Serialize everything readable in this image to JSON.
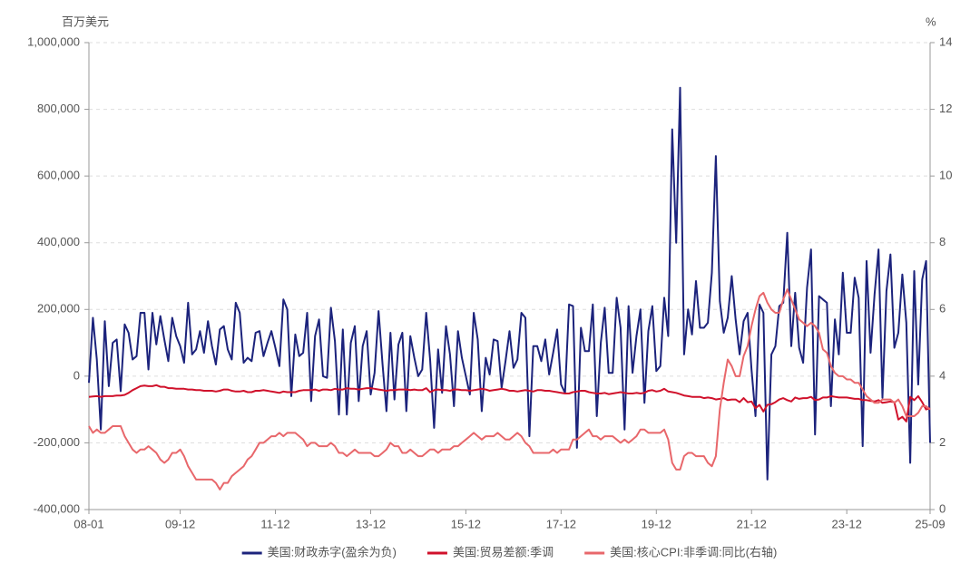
{
  "chart_data": {
    "type": "line",
    "y_axis_label": "百万美元",
    "y2_axis_label": "%",
    "categories": [
      "08-01",
      null,
      null,
      null,
      null,
      null,
      null,
      null,
      null,
      null,
      null,
      null,
      null,
      null,
      null,
      null,
      null,
      null,
      null,
      null,
      null,
      null,
      null,
      "09-12",
      null,
      null,
      null,
      null,
      null,
      null,
      null,
      null,
      null,
      null,
      null,
      null,
      null,
      null,
      null,
      null,
      null,
      null,
      null,
      null,
      null,
      null,
      null,
      "11-12",
      null,
      null,
      null,
      null,
      null,
      null,
      null,
      null,
      null,
      null,
      null,
      null,
      null,
      null,
      null,
      null,
      null,
      null,
      null,
      null,
      null,
      null,
      null,
      "13-12",
      null,
      null,
      null,
      null,
      null,
      null,
      null,
      null,
      null,
      null,
      null,
      null,
      null,
      null,
      null,
      null,
      null,
      null,
      null,
      null,
      null,
      null,
      null,
      "15-12",
      null,
      null,
      null,
      null,
      null,
      null,
      null,
      null,
      null,
      null,
      null,
      null,
      null,
      null,
      null,
      null,
      null,
      null,
      null,
      null,
      null,
      null,
      null,
      "17-12",
      null,
      null,
      null,
      null,
      null,
      null,
      null,
      null,
      null,
      null,
      null,
      null,
      null,
      null,
      null,
      null,
      null,
      null,
      null,
      null,
      null,
      null,
      null,
      "19-12",
      null,
      null,
      null,
      null,
      null,
      null,
      null,
      null,
      null,
      null,
      null,
      null,
      null,
      null,
      null,
      null,
      null,
      null,
      null,
      null,
      null,
      null,
      null,
      "21-12",
      null,
      null,
      null,
      null,
      null,
      null,
      null,
      null,
      null,
      null,
      null,
      null,
      null,
      null,
      null,
      null,
      null,
      null,
      null,
      null,
      null,
      null,
      null,
      "23-12",
      null,
      null,
      null,
      null,
      null,
      null,
      null,
      null,
      null,
      null,
      null,
      null,
      null,
      null,
      null,
      null,
      null,
      null,
      null,
      null,
      "25-09"
    ],
    "ylim": [
      -400000,
      1000000
    ],
    "yticks": [
      {
        "value": -400000,
        "label": "-400,000"
      },
      {
        "value": -200000,
        "label": "-200,000"
      },
      0,
      {
        "value": 200000,
        "label": "200,000"
      },
      {
        "value": 400000,
        "label": "400,000"
      },
      {
        "value": 600000,
        "label": "600,000"
      },
      {
        "value": 800000,
        "label": "800,000"
      },
      {
        "value": 1000000,
        "label": "1,000,000"
      }
    ],
    "y2lim": [
      0,
      14
    ],
    "y2ticks": [
      0,
      2,
      4,
      6,
      8,
      10,
      12,
      14
    ],
    "grid": true,
    "legend": "bottom",
    "series": [
      {
        "name": "美国:财政赤字(盈余为负)",
        "color": "#1c237c",
        "axis": "y",
        "values": [
          -20000,
          175000,
          50000,
          -160000,
          165000,
          -30000,
          100000,
          110000,
          -45000,
          155000,
          130000,
          50000,
          60000,
          190000,
          190000,
          20000,
          190000,
          95000,
          180000,
          110000,
          45000,
          175000,
          120000,
          90000,
          40000,
          220000,
          65000,
          80000,
          135000,
          70000,
          165000,
          90000,
          35000,
          140000,
          150000,
          80000,
          50000,
          220000,
          190000,
          40000,
          55000,
          45000,
          130000,
          135000,
          60000,
          100000,
          135000,
          85000,
          30000,
          230000,
          200000,
          -60000,
          125000,
          60000,
          70000,
          190000,
          -75000,
          120000,
          170000,
          0,
          -5000,
          205000,
          105000,
          -115000,
          140000,
          -115000,
          100000,
          150000,
          -75000,
          90000,
          135000,
          -55000,
          10000,
          195000,
          35000,
          -105000,
          130000,
          -70000,
          95000,
          130000,
          -105000,
          120000,
          55000,
          0,
          20000,
          190000,
          50000,
          -155000,
          80000,
          -50000,
          150000,
          65000,
          -90000,
          135000,
          55000,
          0,
          -55000,
          190000,
          110000,
          -105000,
          55000,
          5000,
          110000,
          105000,
          -35000,
          45000,
          135000,
          25000,
          50000,
          190000,
          175000,
          -180000,
          90000,
          90000,
          45000,
          110000,
          5000,
          70000,
          140000,
          -25000,
          -50000,
          215000,
          210000,
          -215000,
          145000,
          75000,
          75000,
          215000,
          -120000,
          100000,
          205000,
          10000,
          10000,
          235000,
          145000,
          -160000,
          210000,
          10000,
          120000,
          200000,
          -80000,
          135000,
          210000,
          15000,
          30000,
          235000,
          120000,
          740000,
          400000,
          865000,
          65000,
          200000,
          125000,
          285000,
          145000,
          145000,
          160000,
          310000,
          660000,
          225000,
          130000,
          175000,
          300000,
          170000,
          65000,
          165000,
          190000,
          20000,
          -120000,
          215000,
          190000,
          -310000,
          65000,
          90000,
          210000,
          220000,
          430000,
          90000,
          250000,
          85000,
          40000,
          265000,
          380000,
          -175000,
          240000,
          230000,
          220000,
          -90000,
          170000,
          65000,
          310000,
          130000,
          130000,
          295000,
          235000,
          -210000,
          345000,
          70000,
          245000,
          380000,
          -65000,
          255000,
          365000,
          85000,
          130000,
          305000,
          160000,
          -260000,
          315000,
          -25000,
          290000,
          345000,
          -200000
        ]
      },
      {
        "name": "美国:贸易差额:季调",
        "color": "#d0112b",
        "axis": "y",
        "values": [
          -62000,
          -61000,
          -60000,
          -62000,
          -60000,
          -60000,
          -60000,
          -58000,
          -58000,
          -56000,
          -50000,
          -42000,
          -36000,
          -30000,
          -28000,
          -30000,
          -30000,
          -27000,
          -32000,
          -32000,
          -36000,
          -36000,
          -38000,
          -38000,
          -38000,
          -40000,
          -40000,
          -42000,
          -42000,
          -44000,
          -44000,
          -44000,
          -46000,
          -44000,
          -40000,
          -40000,
          -44000,
          -46000,
          -46000,
          -44000,
          -48000,
          -48000,
          -44000,
          -44000,
          -42000,
          -44000,
          -46000,
          -48000,
          -50000,
          -46000,
          -48000,
          -48000,
          -48000,
          -44000,
          -42000,
          -42000,
          -42000,
          -40000,
          -44000,
          -40000,
          -40000,
          -42000,
          -38000,
          -40000,
          -40000,
          -36000,
          -38000,
          -38000,
          -40000,
          -38000,
          -36000,
          -36000,
          -38000,
          -40000,
          -42000,
          -44000,
          -42000,
          -42000,
          -40000,
          -40000,
          -40000,
          -42000,
          -40000,
          -42000,
          -42000,
          -36000,
          -48000,
          -42000,
          -40000,
          -42000,
          -42000,
          -44000,
          -40000,
          -40000,
          -42000,
          -42000,
          -44000,
          -42000,
          -40000,
          -38000,
          -40000,
          -44000,
          -42000,
          -40000,
          -38000,
          -40000,
          -44000,
          -44000,
          -46000,
          -44000,
          -42000,
          -44000,
          -46000,
          -42000,
          -42000,
          -44000,
          -44000,
          -46000,
          -48000,
          -50000,
          -52000,
          -52000,
          -48000,
          -46000,
          -44000,
          -44000,
          -48000,
          -50000,
          -52000,
          -52000,
          -50000,
          -54000,
          -52000,
          -50000,
          -48000,
          -50000,
          -52000,
          -52000,
          -50000,
          -52000,
          -50000,
          -44000,
          -42000,
          -46000,
          -44000,
          -38000,
          -46000,
          -48000,
          -50000,
          -54000,
          -58000,
          -60000,
          -62000,
          -62000,
          -62000,
          -66000,
          -64000,
          -66000,
          -70000,
          -68000,
          -66000,
          -72000,
          -70000,
          -70000,
          -78000,
          -66000,
          -78000,
          -76000,
          -96000,
          -86000,
          -106000,
          -86000,
          -84000,
          -78000,
          -70000,
          -66000,
          -72000,
          -76000,
          -64000,
          -68000,
          -66000,
          -66000,
          -62000,
          -72000,
          -70000,
          -64000,
          -64000,
          -60000,
          -62000,
          -64000,
          -64000,
          -64000,
          -66000,
          -68000,
          -68000,
          -72000,
          -72000,
          -74000,
          -76000,
          -72000,
          -80000,
          -78000,
          -76000,
          -78000,
          -130000,
          -122000,
          -136000,
          -62000,
          -72000,
          -60000,
          -78000,
          -100000,
          -96000
        ]
      },
      {
        "name": "美国:核心CPI:非季调:同比(右轴)",
        "color": "#e8676b",
        "axis": "y2",
        "values": [
          2.5,
          2.3,
          2.4,
          2.3,
          2.3,
          2.4,
          2.5,
          2.5,
          2.5,
          2.2,
          2.0,
          1.8,
          1.7,
          1.8,
          1.8,
          1.9,
          1.8,
          1.7,
          1.5,
          1.4,
          1.5,
          1.7,
          1.7,
          1.8,
          1.6,
          1.3,
          1.1,
          0.9,
          0.9,
          0.9,
          0.9,
          0.9,
          0.8,
          0.6,
          0.8,
          0.8,
          1.0,
          1.1,
          1.2,
          1.3,
          1.5,
          1.6,
          1.8,
          2.0,
          2.0,
          2.1,
          2.2,
          2.2,
          2.3,
          2.2,
          2.3,
          2.3,
          2.3,
          2.2,
          2.1,
          1.9,
          2.0,
          2.0,
          1.9,
          1.9,
          1.9,
          2.0,
          1.9,
          1.7,
          1.7,
          1.6,
          1.7,
          1.8,
          1.7,
          1.7,
          1.7,
          1.7,
          1.6,
          1.6,
          1.7,
          1.8,
          2.0,
          1.9,
          1.9,
          1.7,
          1.7,
          1.8,
          1.7,
          1.6,
          1.6,
          1.7,
          1.8,
          1.8,
          1.7,
          1.8,
          1.8,
          1.8,
          1.9,
          1.9,
          2.0,
          2.1,
          2.2,
          2.3,
          2.2,
          2.1,
          2.2,
          2.2,
          2.2,
          2.3,
          2.2,
          2.1,
          2.1,
          2.2,
          2.3,
          2.2,
          2.0,
          1.9,
          1.7,
          1.7,
          1.7,
          1.7,
          1.7,
          1.8,
          1.7,
          1.8,
          1.8,
          1.8,
          2.1,
          2.1,
          2.2,
          2.3,
          2.4,
          2.2,
          2.2,
          2.1,
          2.2,
          2.2,
          2.2,
          2.1,
          2.0,
          2.1,
          2.0,
          2.1,
          2.2,
          2.4,
          2.4,
          2.3,
          2.3,
          2.3,
          2.3,
          2.4,
          2.1,
          1.4,
          1.2,
          1.2,
          1.6,
          1.7,
          1.7,
          1.6,
          1.6,
          1.6,
          1.4,
          1.3,
          1.6,
          3.0,
          3.8,
          4.5,
          4.3,
          4.0,
          4.0,
          4.6,
          4.9,
          5.5,
          6.0,
          6.4,
          6.5,
          6.2,
          6.0,
          5.9,
          5.9,
          6.3,
          6.6,
          6.3,
          6.0,
          5.7,
          5.6,
          5.5,
          5.6,
          5.5,
          5.3,
          4.8,
          4.7,
          4.3,
          4.1,
          4.0,
          4.0,
          3.9,
          3.9,
          3.8,
          3.8,
          3.6,
          3.4,
          3.3,
          3.2,
          3.2,
          3.3,
          3.3,
          3.3,
          3.2,
          3.3,
          3.1,
          2.8,
          2.8,
          2.8,
          2.9,
          3.1,
          3.1,
          3.0
        ]
      }
    ]
  }
}
